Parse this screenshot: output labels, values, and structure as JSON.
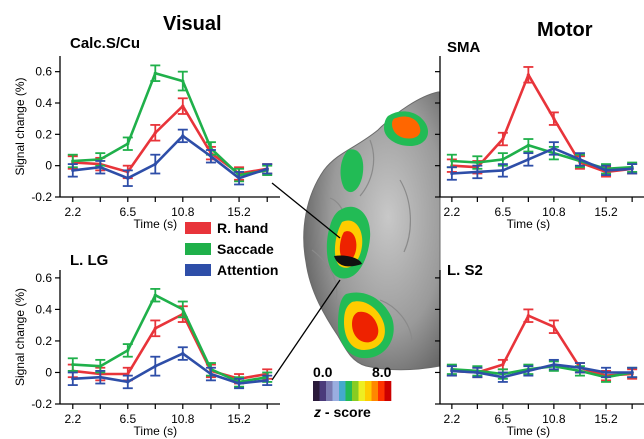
{
  "titles": {
    "left": "Visual",
    "right": "Motor"
  },
  "legend": [
    {
      "name": "R. hand",
      "color": "#e8343a"
    },
    {
      "name": "Saccade",
      "color": "#1fb04a"
    },
    {
      "name": "Attention",
      "color": "#2e4ea8"
    }
  ],
  "colorbar": {
    "min_label": "0.0",
    "max_label": "8.0",
    "label_italic": "z",
    "label_rest": " - score",
    "colors": [
      "#2a1a3a",
      "#4a3a7a",
      "#7a7ab0",
      "#9aaee0",
      "#44aacc",
      "#22bb55",
      "#88cc22",
      "#eeee22",
      "#ffcc00",
      "#ff8800",
      "#ff3300",
      "#cc0000"
    ]
  },
  "chart_data": [
    {
      "type": "line",
      "title": "Calc.S/Cu",
      "xlabel": "Time (s)",
      "ylabel": "Signal change (%)",
      "x": [
        2.2,
        4.35,
        6.5,
        8.65,
        10.8,
        13.0,
        15.2,
        17.4
      ],
      "xticks": [
        "2.2",
        "6.5",
        "10.8",
        "15.2"
      ],
      "yticks": [
        "-0.2",
        "0",
        "0.2",
        "0.4",
        "0.6"
      ],
      "xlim": [
        1.2,
        18.4
      ],
      "ylim": [
        -0.2,
        0.7
      ],
      "series": [
        {
          "name": "R. hand",
          "values": [
            0.02,
            0.01,
            -0.04,
            0.21,
            0.38,
            0.08,
            -0.05,
            -0.02
          ],
          "errors": [
            0.04,
            0.04,
            0.04,
            0.05,
            0.05,
            0.04,
            0.04,
            0.03
          ]
        },
        {
          "name": "Saccade",
          "values": [
            0.03,
            0.04,
            0.14,
            0.59,
            0.54,
            0.11,
            -0.06,
            -0.03
          ],
          "errors": [
            0.04,
            0.04,
            0.04,
            0.05,
            0.06,
            0.04,
            0.04,
            0.03
          ]
        },
        {
          "name": "Attention",
          "values": [
            -0.03,
            -0.01,
            -0.08,
            0.01,
            0.19,
            0.06,
            -0.08,
            -0.02
          ],
          "errors": [
            0.04,
            0.04,
            0.05,
            0.06,
            0.04,
            0.04,
            0.04,
            0.03
          ]
        }
      ]
    },
    {
      "type": "line",
      "title": "L. LG",
      "xlabel": "Time (s)",
      "ylabel": "Signal change (%)",
      "x": [
        2.2,
        4.35,
        6.5,
        8.65,
        10.8,
        13.0,
        15.2,
        17.4
      ],
      "xticks": [
        "2.2",
        "6.5",
        "10.8",
        "15.2"
      ],
      "yticks": [
        "-0.2",
        "0",
        "0.2",
        "0.4",
        "0.6"
      ],
      "xlim": [
        1.2,
        18.4
      ],
      "ylim": [
        -0.2,
        0.65
      ],
      "series": [
        {
          "name": "R. hand",
          "values": [
            0.01,
            -0.01,
            -0.01,
            0.28,
            0.37,
            0.01,
            -0.04,
            -0.01
          ],
          "errors": [
            0.04,
            0.04,
            0.04,
            0.05,
            0.05,
            0.04,
            0.03,
            0.03
          ]
        },
        {
          "name": "Saccade",
          "values": [
            0.05,
            0.04,
            0.14,
            0.49,
            0.4,
            0.02,
            -0.06,
            -0.03
          ],
          "errors": [
            0.04,
            0.04,
            0.04,
            0.04,
            0.05,
            0.04,
            0.03,
            0.03
          ]
        },
        {
          "name": "Attention",
          "values": [
            -0.04,
            -0.03,
            -0.06,
            0.04,
            0.12,
            -0.01,
            -0.07,
            -0.05
          ],
          "errors": [
            0.04,
            0.04,
            0.04,
            0.06,
            0.04,
            0.04,
            0.03,
            0.03
          ]
        }
      ]
    },
    {
      "type": "line",
      "title": "SMA",
      "xlabel": "Time (s)",
      "ylabel": "",
      "x": [
        2.2,
        4.35,
        6.5,
        8.65,
        10.8,
        13.0,
        15.2,
        17.4
      ],
      "xticks": [
        "2.2",
        "6.5",
        "10.8",
        "15.2"
      ],
      "yticks": [],
      "xlim": [
        1.2,
        18.4
      ],
      "ylim": [
        -0.2,
        0.7
      ],
      "series": [
        {
          "name": "R. hand",
          "values": [
            0.0,
            -0.01,
            0.17,
            0.58,
            0.3,
            0.02,
            -0.04,
            -0.02
          ],
          "errors": [
            0.04,
            0.04,
            0.04,
            0.05,
            0.04,
            0.04,
            0.03,
            0.03
          ]
        },
        {
          "name": "Saccade",
          "values": [
            0.03,
            0.02,
            0.04,
            0.13,
            0.08,
            0.03,
            -0.02,
            -0.01
          ],
          "errors": [
            0.04,
            0.04,
            0.04,
            0.04,
            0.04,
            0.04,
            0.03,
            0.03
          ]
        },
        {
          "name": "Attention",
          "values": [
            -0.05,
            -0.04,
            -0.03,
            0.04,
            0.11,
            0.04,
            -0.03,
            -0.02
          ],
          "errors": [
            0.04,
            0.04,
            0.04,
            0.04,
            0.04,
            0.04,
            0.03,
            0.03
          ]
        }
      ]
    },
    {
      "type": "line",
      "title": "L. S2",
      "xlabel": "Time (s)",
      "ylabel": "",
      "x": [
        2.2,
        4.35,
        6.5,
        8.65,
        10.8,
        13.0,
        15.2,
        17.4
      ],
      "xticks": [
        "2.2",
        "6.5",
        "10.8",
        "15.2"
      ],
      "yticks": [],
      "xlim": [
        1.2,
        18.4
      ],
      "ylim": [
        -0.2,
        0.65
      ],
      "series": [
        {
          "name": "R. hand",
          "values": [
            0.01,
            0.0,
            0.05,
            0.36,
            0.29,
            0.03,
            -0.02,
            -0.01
          ],
          "errors": [
            0.03,
            0.03,
            0.03,
            0.04,
            0.04,
            0.03,
            0.03,
            0.03
          ]
        },
        {
          "name": "Saccade",
          "values": [
            0.02,
            0.01,
            -0.01,
            0.02,
            0.04,
            0.01,
            -0.03,
            0.0
          ],
          "errors": [
            0.03,
            0.03,
            0.03,
            0.03,
            0.03,
            0.03,
            0.03,
            0.03
          ]
        },
        {
          "name": "Attention",
          "values": [
            0.01,
            0.0,
            -0.03,
            0.01,
            0.05,
            0.03,
            0.0,
            0.0
          ],
          "errors": [
            0.03,
            0.03,
            0.03,
            0.03,
            0.03,
            0.03,
            0.03,
            0.03
          ]
        }
      ]
    }
  ]
}
